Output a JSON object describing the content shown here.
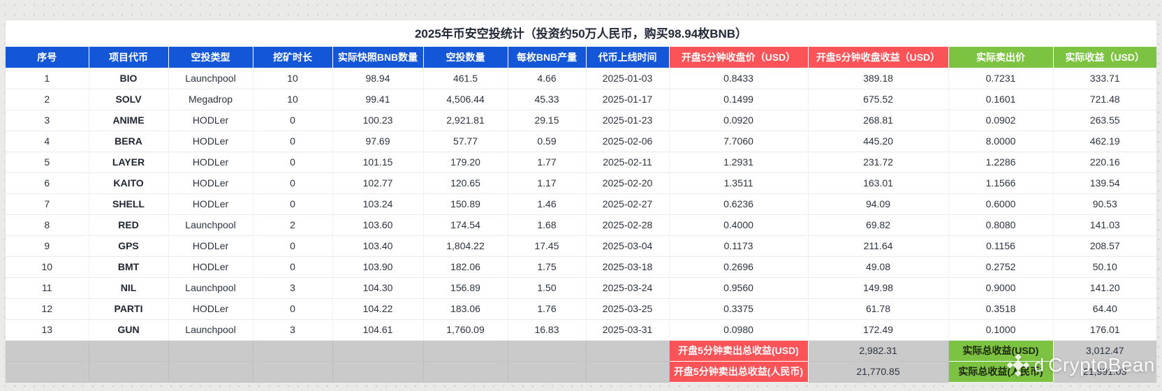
{
  "title": "2025年币安空投统计（投资约50万人民币，购买98.94枚BNB）",
  "colors": {
    "header_blue": "#1456d8",
    "header_red": "#fb5357",
    "header_green": "#7cc342",
    "summary_gray": "#cacaca"
  },
  "table": {
    "columns": [
      {
        "label": "序号",
        "group": "blue"
      },
      {
        "label": "项目代币",
        "group": "blue"
      },
      {
        "label": "空投类型",
        "group": "blue"
      },
      {
        "label": "挖矿时长",
        "group": "blue"
      },
      {
        "label": "实际快照BNB数量",
        "group": "blue"
      },
      {
        "label": "空投数量",
        "group": "blue"
      },
      {
        "label": "每枚BNB产量",
        "group": "blue"
      },
      {
        "label": "代币上线时间",
        "group": "blue"
      },
      {
        "label": "开盘5分钟收盘价（USD）",
        "group": "red"
      },
      {
        "label": "开盘5分钟收盘收益（USD）",
        "group": "red"
      },
      {
        "label": "实际卖出价",
        "group": "green"
      },
      {
        "label": "实际收益（USD）",
        "group": "green"
      }
    ],
    "rows": [
      [
        "1",
        "BIO",
        "Launchpool",
        "10",
        "98.94",
        "461.5",
        "4.66",
        "2025-01-03",
        "0.8433",
        "389.18",
        "0.7231",
        "333.71"
      ],
      [
        "2",
        "SOLV",
        "Megadrop",
        "10",
        "99.41",
        "4,506.44",
        "45.33",
        "2025-01-17",
        "0.1499",
        "675.52",
        "0.1601",
        "721.48"
      ],
      [
        "3",
        "ANIME",
        "HODLer",
        "0",
        "100.23",
        "2,921.81",
        "29.15",
        "2025-01-23",
        "0.0920",
        "268.81",
        "0.0902",
        "263.55"
      ],
      [
        "4",
        "BERA",
        "HODLer",
        "0",
        "97.69",
        "57.77",
        "0.59",
        "2025-02-06",
        "7.7060",
        "445.20",
        "8.0000",
        "462.19"
      ],
      [
        "5",
        "LAYER",
        "HODLer",
        "0",
        "101.15",
        "179.20",
        "1.77",
        "2025-02-11",
        "1.2931",
        "231.72",
        "1.2286",
        "220.16"
      ],
      [
        "6",
        "KAITO",
        "HODLer",
        "0",
        "102.77",
        "120.65",
        "1.17",
        "2025-02-20",
        "1.3511",
        "163.01",
        "1.1566",
        "139.54"
      ],
      [
        "7",
        "SHELL",
        "HODLer",
        "0",
        "103.24",
        "150.89",
        "1.46",
        "2025-02-27",
        "0.6236",
        "94.09",
        "0.6000",
        "90.53"
      ],
      [
        "8",
        "RED",
        "Launchpool",
        "2",
        "103.60",
        "174.54",
        "1.68",
        "2025-02-28",
        "0.4000",
        "69.82",
        "0.8080",
        "141.03"
      ],
      [
        "9",
        "GPS",
        "HODLer",
        "0",
        "103.40",
        "1,804.22",
        "17.45",
        "2025-03-04",
        "0.1173",
        "211.64",
        "0.1156",
        "208.57"
      ],
      [
        "10",
        "BMT",
        "HODLer",
        "0",
        "103.90",
        "182.06",
        "1.75",
        "2025-03-18",
        "0.2696",
        "49.08",
        "0.2752",
        "50.10"
      ],
      [
        "11",
        "NIL",
        "Launchpool",
        "3",
        "104.30",
        "156.89",
        "1.50",
        "2025-03-24",
        "0.9560",
        "149.98",
        "0.9000",
        "141.20"
      ],
      [
        "12",
        "PARTI",
        "HODLer",
        "0",
        "104.22",
        "183.06",
        "1.76",
        "2025-03-25",
        "0.3375",
        "61.78",
        "0.3518",
        "64.40"
      ],
      [
        "13",
        "GUN",
        "Launchpool",
        "3",
        "104.61",
        "1,760.09",
        "16.83",
        "2025-03-31",
        "0.0980",
        "172.49",
        "0.1000",
        "176.01"
      ]
    ],
    "summary": [
      {
        "red_label": "开盘5分钟卖出总收益(USD)",
        "red_value": "2,982.31",
        "green_label": "实际总收益(USD)",
        "green_value": "3,012.47"
      },
      {
        "red_label": "开盘5分钟卖出总收益(人民币)",
        "red_value": "21,770.85",
        "green_label": "实际总收益(人民币)",
        "green_value": "21,991.03"
      }
    ]
  },
  "watermark": {
    "logo": "binance-diamond-icon",
    "prefix": "d",
    "text": "CryptoBean"
  }
}
